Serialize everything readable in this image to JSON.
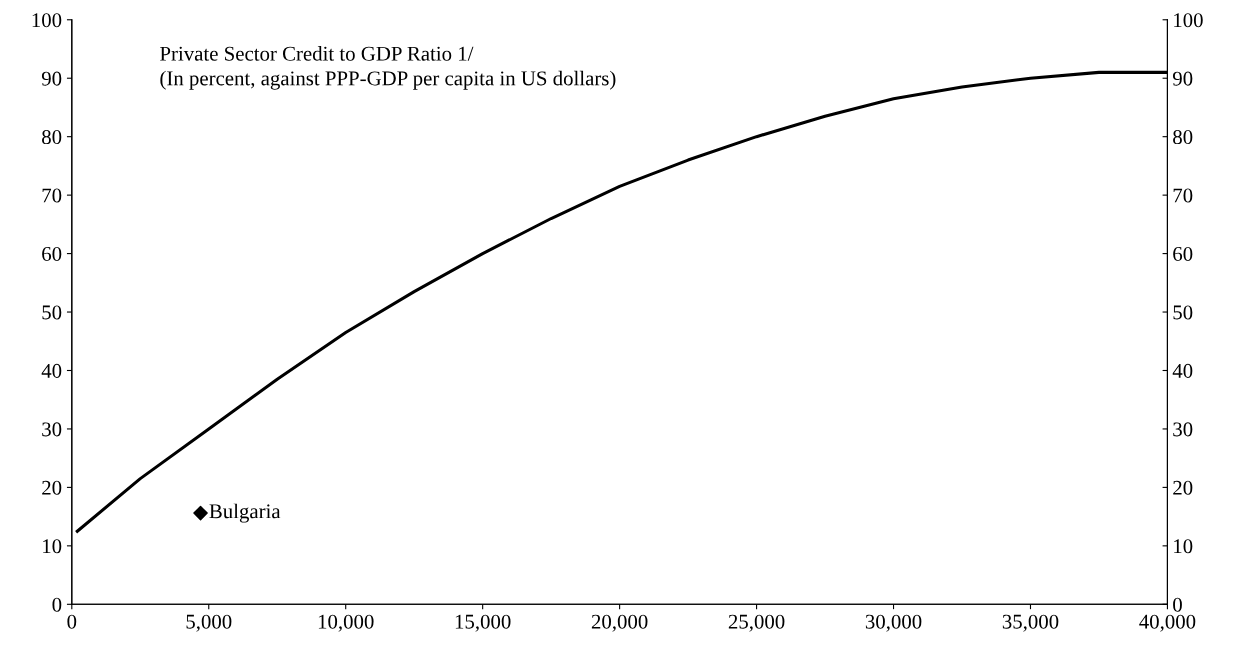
{
  "chart_data": {
    "type": "line",
    "title": "Private Sector Credit to GDP Ratio 1/\n(In percent, against PPP-GDP per capita in US dollars)",
    "xlim": [
      0,
      40000
    ],
    "xticks": [
      {
        "value": 0,
        "label": "0"
      },
      {
        "value": 5000,
        "label": "5,000"
      },
      {
        "value": 10000,
        "label": "10,000"
      },
      {
        "value": 15000,
        "label": "15,000"
      },
      {
        "value": 20000,
        "label": "20,000"
      },
      {
        "value": 25000,
        "label": "25,000"
      },
      {
        "value": 30000,
        "label": "30,000"
      },
      {
        "value": 35000,
        "label": "35,000"
      },
      {
        "value": 40000,
        "label": "40,000"
      }
    ],
    "ylim": [
      0,
      100
    ],
    "yticks": [
      0,
      10,
      20,
      30,
      40,
      50,
      60,
      70,
      80,
      90,
      100
    ],
    "y2lim": [
      0,
      100
    ],
    "y2ticks": [
      0,
      10,
      20,
      30,
      40,
      50,
      60,
      70,
      80,
      90,
      100
    ],
    "grid": false,
    "legend": false,
    "series": [
      {
        "color": "#000000",
        "marker": "none",
        "line_style": "solid",
        "x": [
          200,
          2500,
          5000,
          7500,
          10000,
          12500,
          15000,
          17500,
          20000,
          22500,
          25000,
          27500,
          30000,
          32500,
          35000,
          37500,
          40000
        ],
        "values": [
          12.5,
          21.5,
          30,
          38.5,
          46.5,
          53.5,
          60,
          66,
          71.5,
          76,
          80,
          83.5,
          86.5,
          88.5,
          90,
          91,
          91
        ]
      },
      {
        "type": "scatter",
        "name": "Bulgaria",
        "color": "#000000",
        "marker": "diamond",
        "x": [
          4700
        ],
        "values": [
          15.6
        ]
      }
    ]
  }
}
